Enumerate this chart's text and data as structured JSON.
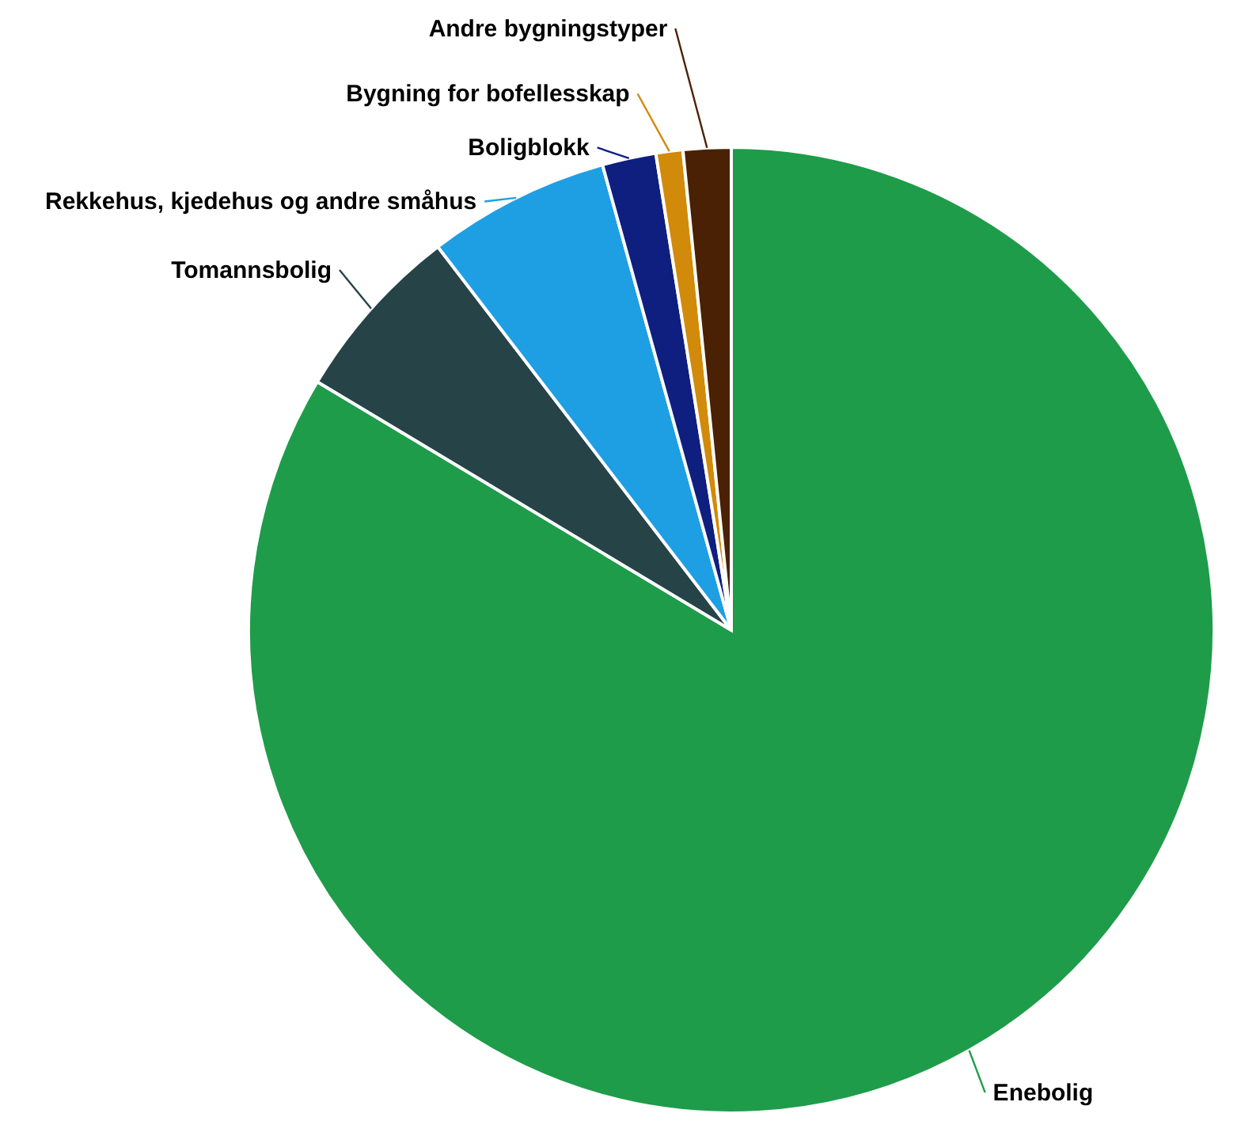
{
  "chart_data": {
    "type": "pie",
    "categories": [
      "Enebolig",
      "Tomannsbolig",
      "Rekkehus, kjedehus og andre småhus",
      "Boligblokk",
      "Bygning for bofellesskap",
      "Andre bygningstyper"
    ],
    "values": [
      83.6,
      6.0,
      6.1,
      1.8,
      0.9,
      1.6
    ],
    "colors": [
      "#1e9c4a",
      "#264348",
      "#1f9fe3",
      "#0f1f80",
      "#d28a0a",
      "#4a2104"
    ],
    "legend": false
  }
}
